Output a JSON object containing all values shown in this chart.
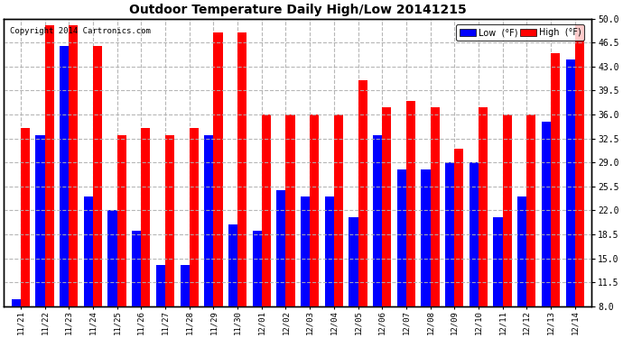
{
  "title": "Outdoor Temperature Daily High/Low 20141215",
  "copyright": "Copyright 2014 Cartronics.com",
  "ylabel_right_ticks": [
    8.0,
    11.5,
    15.0,
    18.5,
    22.0,
    25.5,
    29.0,
    32.5,
    36.0,
    39.5,
    43.0,
    46.5,
    50.0
  ],
  "dates": [
    "11/21",
    "11/22",
    "11/23",
    "11/24",
    "11/25",
    "11/26",
    "11/27",
    "11/28",
    "11/29",
    "11/30",
    "12/01",
    "12/02",
    "12/03",
    "12/04",
    "12/05",
    "12/06",
    "12/07",
    "12/08",
    "12/09",
    "12/10",
    "12/11",
    "12/12",
    "12/13",
    "12/14"
  ],
  "high": [
    34,
    49,
    49,
    46,
    33,
    34,
    33,
    34,
    48,
    48,
    36,
    36,
    36,
    36,
    41,
    37,
    38,
    37,
    31,
    37,
    36,
    36,
    45,
    49
  ],
  "low": [
    9,
    33,
    46,
    24,
    22,
    19,
    14,
    14,
    33,
    20,
    19,
    25,
    24,
    24,
    21,
    33,
    28,
    28,
    29,
    29,
    21,
    24,
    35,
    44
  ],
  "high_color": "#ff0000",
  "low_color": "#0000ff",
  "background_color": "#ffffff",
  "grid_color": "#b0b0b0",
  "bar_width": 0.38,
  "ylim": [
    8.0,
    50.0
  ],
  "legend_low_label": "Low  (°F)",
  "legend_high_label": "High  (°F)",
  "figsize": [
    6.9,
    3.75
  ],
  "dpi": 100
}
